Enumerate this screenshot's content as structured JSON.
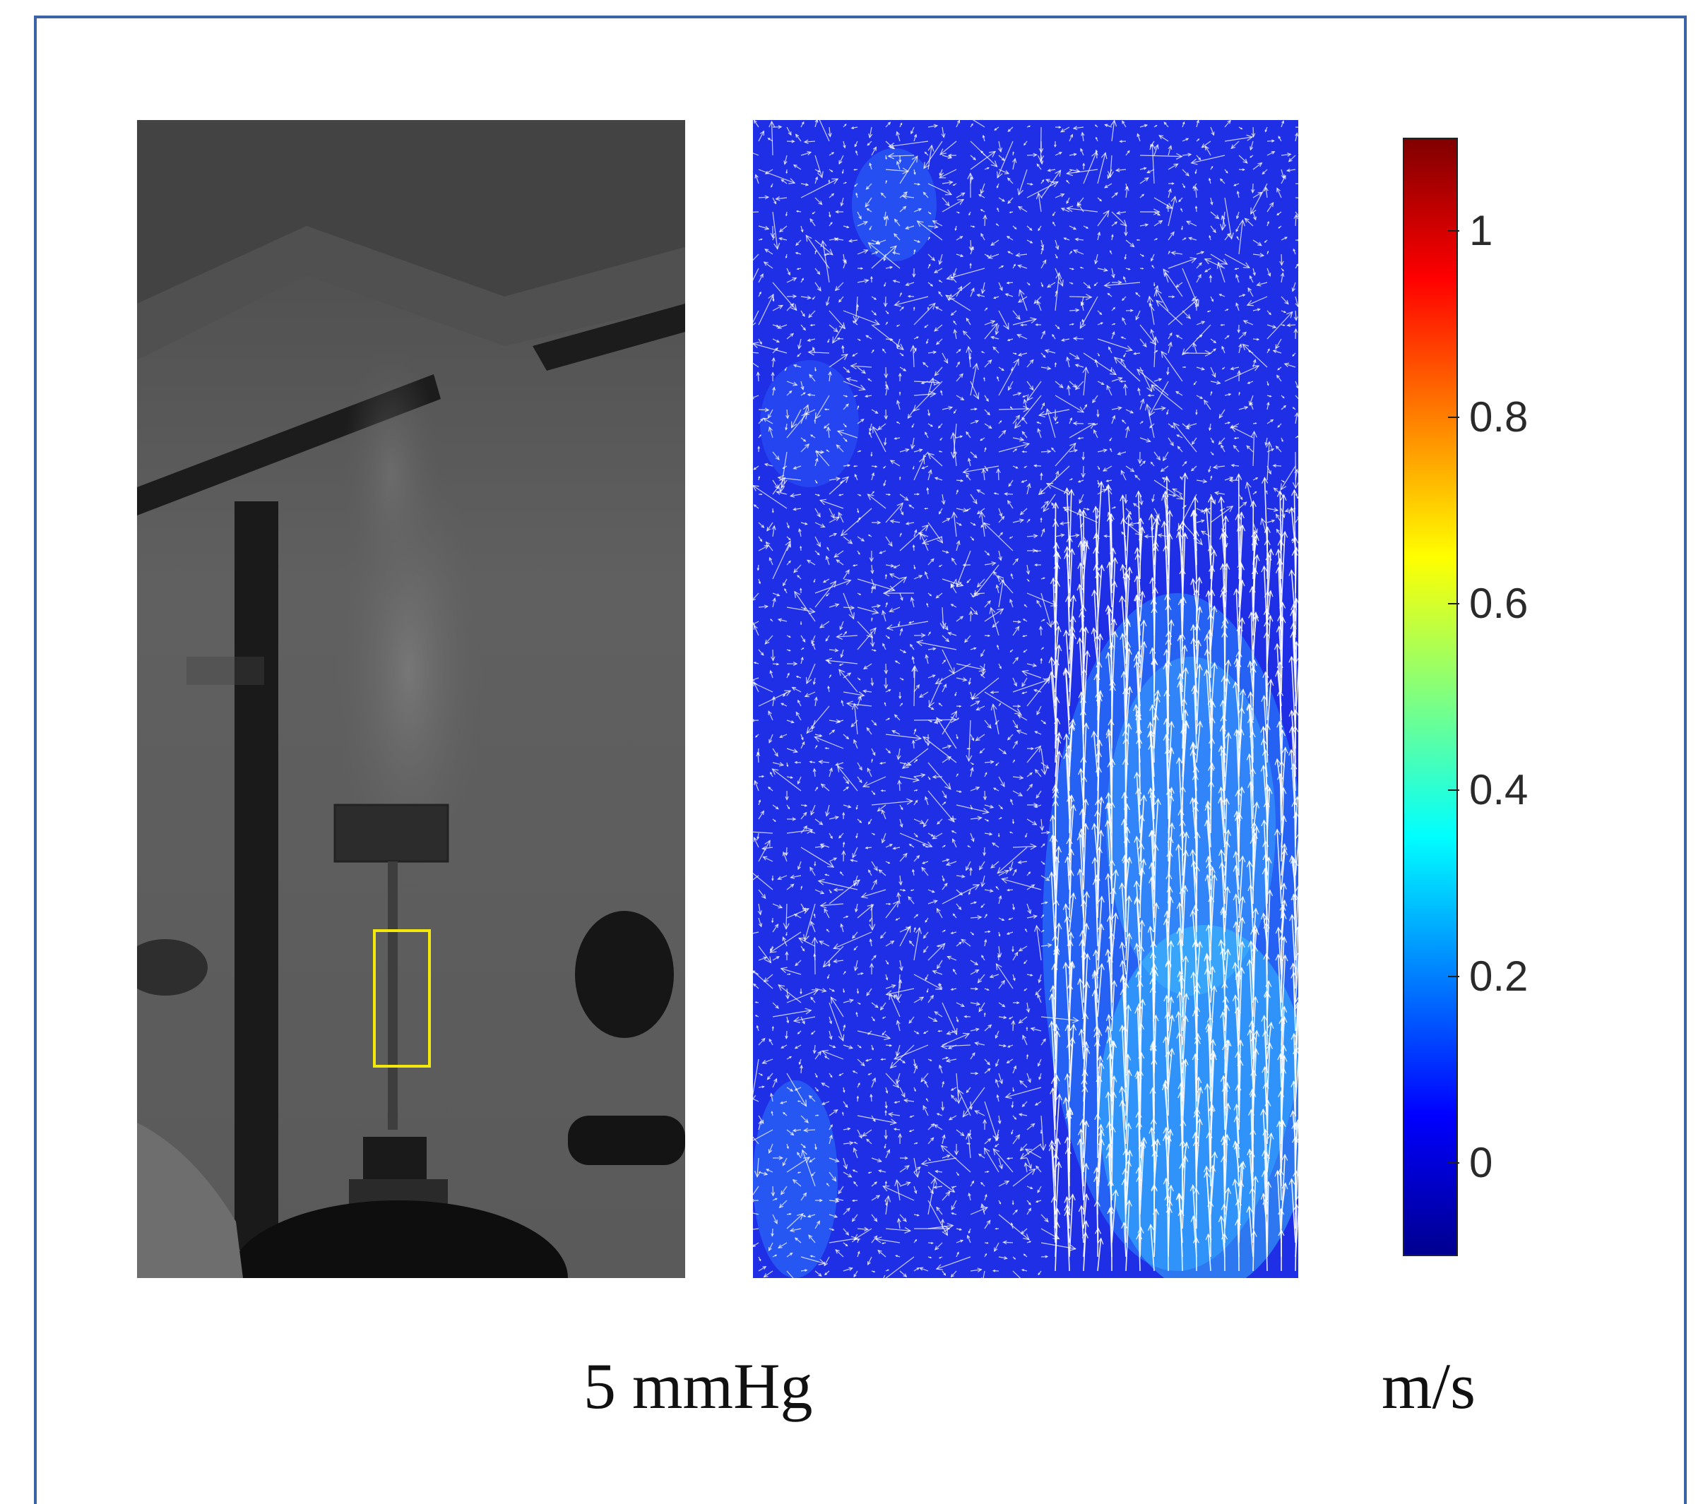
{
  "photo": {
    "roi_color": "#f2e80c"
  },
  "piv": {
    "background_color": "#1f2fe6",
    "arrow_color": "#ffffff"
  },
  "colorbar": {
    "ticks": [
      {
        "value": 1,
        "label": "1"
      },
      {
        "value": 0.8,
        "label": "0.8"
      },
      {
        "value": 0.6,
        "label": "0.6"
      },
      {
        "value": 0.4,
        "label": "0.4"
      },
      {
        "value": 0.2,
        "label": "0.2"
      },
      {
        "value": 0,
        "label": "0"
      }
    ],
    "range": [
      -0.1,
      1.1
    ],
    "colormap": "jet"
  },
  "captions": {
    "pressure": "5 mmHg",
    "unit": "m/s"
  }
}
